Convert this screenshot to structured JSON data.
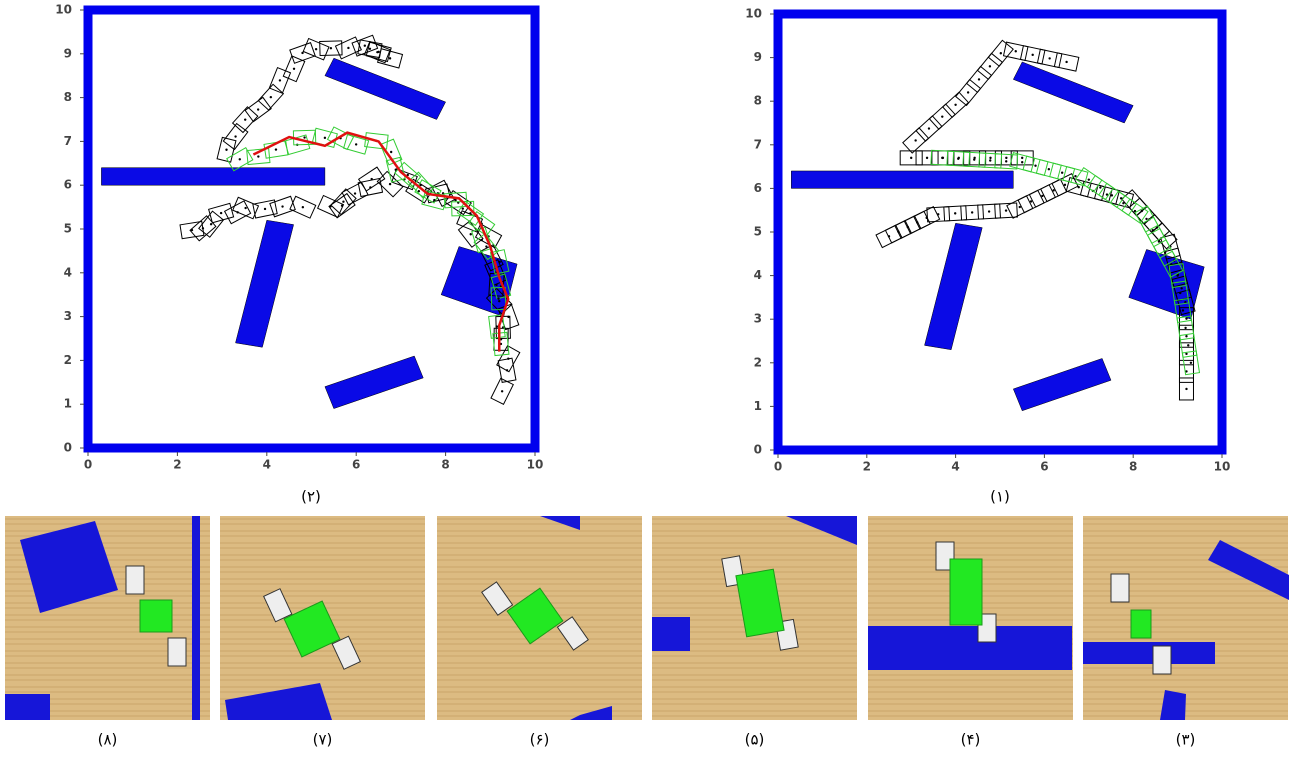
{
  "plots": [
    {
      "caption": "(۲)",
      "xlim": [
        0,
        10
      ],
      "ylim": [
        0,
        10
      ],
      "xticks": [
        0,
        2,
        4,
        6,
        8,
        10
      ],
      "yticks": [
        0,
        1,
        2,
        3,
        4,
        5,
        6,
        7,
        8,
        9,
        10
      ]
    },
    {
      "caption": "(۱)",
      "xlim": [
        0,
        10
      ],
      "ylim": [
        0,
        10
      ],
      "xticks": [
        0,
        2,
        4,
        6,
        8,
        10
      ],
      "yticks": [
        0,
        1,
        2,
        3,
        4,
        5,
        6,
        7,
        8,
        9,
        10
      ]
    }
  ],
  "photos": [
    {
      "caption": "(۸)"
    },
    {
      "caption": "(۷)"
    },
    {
      "caption": "(۶)"
    },
    {
      "caption": "(۵)"
    },
    {
      "caption": "(۴)"
    },
    {
      "caption": "(۳)"
    }
  ]
}
